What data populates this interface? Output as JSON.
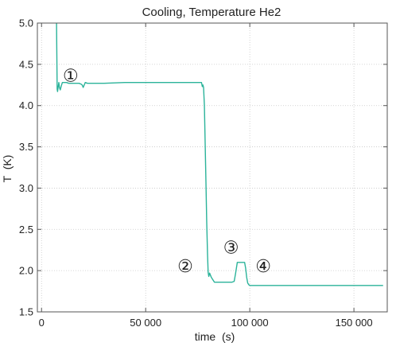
{
  "chart_data": {
    "type": "line",
    "title": "Cooling, Temperature He2",
    "xlabel": "time  (s)",
    "ylabel": "T  (K)",
    "xlim": [
      -2000,
      166000
    ],
    "ylim": [
      1.5,
      5.0
    ],
    "x_ticks": [
      {
        "value": 0,
        "label": "0"
      },
      {
        "value": 50000,
        "label": "50 000"
      },
      {
        "value": 100000,
        "label": "100 000"
      },
      {
        "value": 150000,
        "label": "150 000"
      }
    ],
    "y_ticks": [
      {
        "value": 1.5,
        "label": "1.5"
      },
      {
        "value": 2.0,
        "label": "2.0"
      },
      {
        "value": 2.5,
        "label": "2.5"
      },
      {
        "value": 3.0,
        "label": "3.0"
      },
      {
        "value": 3.5,
        "label": "3.5"
      },
      {
        "value": 4.0,
        "label": "4.0"
      },
      {
        "value": 4.5,
        "label": "4.5"
      },
      {
        "value": 5.0,
        "label": "5.0"
      }
    ],
    "grid": true,
    "series": [
      {
        "color": "#2bb39a",
        "x": [
          7000,
          7200,
          7500,
          7700,
          8000,
          8300,
          8600,
          9000,
          9500,
          10000,
          11000,
          12000,
          13000,
          14000,
          15000,
          16000,
          17000,
          18000,
          19000,
          19500,
          20000,
          20500,
          21000,
          22000,
          25000,
          30000,
          40000,
          50000,
          60000,
          70000,
          75000,
          76000,
          76800,
          77200,
          77500,
          77800,
          78200,
          78600,
          79000,
          79300,
          79700,
          80000,
          80300,
          80700,
          81500,
          83000,
          85000,
          88000,
          90000,
          91500,
          92500,
          93200,
          94000,
          95000,
          96500,
          97500,
          98000,
          98500,
          99000,
          99500,
          100000,
          101000,
          102000,
          105000,
          110000,
          120000,
          130000,
          140000,
          150000,
          160000,
          164000
        ],
        "y": [
          5.5,
          5.0,
          4.2,
          4.17,
          4.23,
          4.28,
          4.22,
          4.19,
          4.24,
          4.28,
          4.28,
          4.28,
          4.27,
          4.27,
          4.27,
          4.27,
          4.27,
          4.27,
          4.26,
          4.25,
          4.22,
          4.25,
          4.28,
          4.27,
          4.27,
          4.27,
          4.28,
          4.28,
          4.28,
          4.28,
          4.28,
          4.28,
          4.28,
          4.23,
          4.25,
          4.22,
          4.0,
          3.5,
          3.0,
          2.6,
          2.2,
          1.98,
          1.93,
          1.97,
          1.92,
          1.86,
          1.86,
          1.86,
          1.86,
          1.86,
          1.87,
          1.97,
          2.1,
          2.1,
          2.1,
          2.1,
          2.03,
          1.92,
          1.85,
          1.83,
          1.82,
          1.82,
          1.82,
          1.82,
          1.82,
          1.82,
          1.82,
          1.82,
          1.82,
          1.82,
          1.82
        ]
      }
    ],
    "annotations": [
      {
        "text": "①",
        "x": 14000,
        "y": 4.29
      },
      {
        "text": "②",
        "x": 69000,
        "y": 1.98
      },
      {
        "text": "③",
        "x": 91000,
        "y": 2.21
      },
      {
        "text": "④",
        "x": 106500,
        "y": 1.98
      }
    ]
  }
}
